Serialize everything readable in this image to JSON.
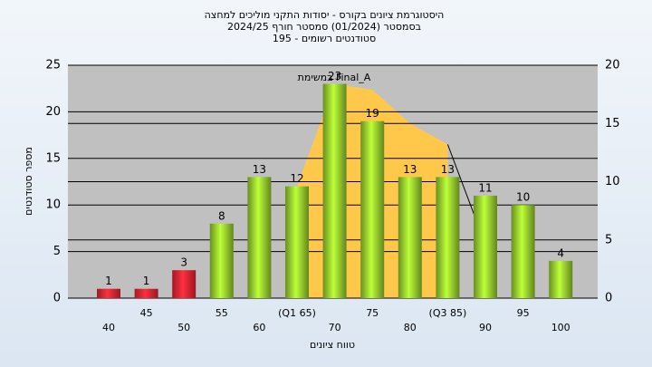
{
  "chart_data": {
    "type": "bar",
    "title": [
      "היסטוגרמת ציונים בקורס - יסודות התקני מוליכים למחצה",
      "בסמסטר (01/2024) סמסטר חורף 2024/25",
      "סטודנטים רשומים - 195"
    ],
    "xlabel": "טווח ציונים",
    "ylabel": "מספר סטודנטים",
    "annotation": "במשימת Final_A",
    "categories": [
      "40",
      "45",
      "50",
      "55",
      "60",
      "(Q1 65)",
      "70",
      "75",
      "80",
      "(Q3 85)",
      "90",
      "95",
      "100"
    ],
    "values": [
      1,
      1,
      3,
      8,
      13,
      12,
      23,
      19,
      13,
      13,
      11,
      10,
      4
    ],
    "colors": [
      "#d9232e",
      "#d9232e",
      "#d9232e",
      "#8cbf2a",
      "#8cbf2a",
      "#8cbf2a",
      "#8cbf2a",
      "#8cbf2a",
      "#8cbf2a",
      "#8cbf2a",
      "#8cbf2a",
      "#8cbf2a",
      "#8cbf2a"
    ],
    "series": [
      {
        "type": "area",
        "axis": "y2",
        "color": "#ffc84a",
        "values": [
          null,
          null,
          null,
          null,
          null,
          9.6,
          18.4,
          17.9,
          15,
          13.2,
          null,
          null,
          null
        ]
      },
      {
        "type": "line",
        "axis": "y2",
        "color": "#000000",
        "values": [
          null,
          null,
          null,
          null,
          null,
          null,
          null,
          null,
          null,
          13.2,
          4.6,
          null,
          null
        ]
      }
    ],
    "ylim": [
      0,
      25
    ],
    "yticks": [
      0,
      5,
      10,
      15,
      20,
      25
    ],
    "y2lim": [
      0,
      20
    ],
    "y2ticks": [
      0,
      5,
      10,
      15,
      20
    ],
    "grid": true
  }
}
